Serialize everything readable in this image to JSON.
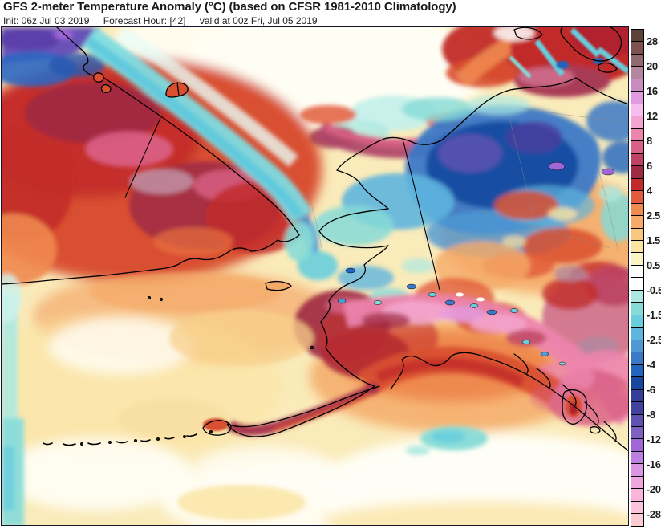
{
  "header": {
    "title": "GFS 2-meter Temperature Anomaly (°C) (based on CFSR 1981-2010 Climatology)",
    "init": "Init: 06z Jul 03 2019",
    "forecast_hour": "Forecast Hour: [42]",
    "valid": "valid at 00z Fri, Jul 05 2019"
  },
  "colorbar": {
    "unit": "°C",
    "labels": [
      "28",
      "20",
      "16",
      "12",
      "8",
      "6",
      "4",
      "2.5",
      "1.5",
      "0.5",
      "-0.5",
      "-1.5",
      "-2.5",
      "-4",
      "-6",
      "-8",
      "-12",
      "-16",
      "-20",
      "-28"
    ],
    "segments": [
      {
        "range": "> 28",
        "color": "#5E4237"
      },
      {
        "range": "24 to 28",
        "color": "#7D5150"
      },
      {
        "range": "20 to 24",
        "color": "#906A6E"
      },
      {
        "range": "18 to 20",
        "color": "#B2879F"
      },
      {
        "range": "16 to 18",
        "color": "#C98CC0"
      },
      {
        "range": "14 to 16",
        "color": "#E29ADF"
      },
      {
        "range": "12 to 14",
        "color": "#F6BDF0"
      },
      {
        "range": "10 to 12",
        "color": "#F3A3CF"
      },
      {
        "range": "8 to 10",
        "color": "#EC84AD"
      },
      {
        "range": "7 to 8",
        "color": "#DA6186"
      },
      {
        "range": "6 to 7",
        "color": "#BD4263"
      },
      {
        "range": "5 to 6",
        "color": "#9E2A44"
      },
      {
        "range": "4 to 5",
        "color": "#C22B29"
      },
      {
        "range": "3 to 4",
        "color": "#E25C3B"
      },
      {
        "range": "2.5 to 3",
        "color": "#EF8A50"
      },
      {
        "range": "2 to 2.5",
        "color": "#F5AA68"
      },
      {
        "range": "1.5 to 2",
        "color": "#F8C87E"
      },
      {
        "range": "1 to 1.5",
        "color": "#FBE3A0"
      },
      {
        "range": "0.5 to 1",
        "color": "#FDF4C6"
      },
      {
        "range": "0 to 0.5",
        "color": "#FFFFFA"
      },
      {
        "range": "-0.5 to 0",
        "color": "#FFFFFF"
      },
      {
        "range": "-1 to -0.5",
        "color": "#ADE9E1"
      },
      {
        "range": "-1.5 to -1",
        "color": "#86DBD7"
      },
      {
        "range": "-2 to -1.5",
        "color": "#68CEDD"
      },
      {
        "range": "-2.5 to -2",
        "color": "#5EB5DE"
      },
      {
        "range": "-3 to -2.5",
        "color": "#4E98D4"
      },
      {
        "range": "-4 to -3",
        "color": "#3B78C6"
      },
      {
        "range": "-5 to -4",
        "color": "#2264BE"
      },
      {
        "range": "-6 to -5",
        "color": "#15489E"
      },
      {
        "range": "-7 to -6",
        "color": "#333F9B"
      },
      {
        "range": "-8 to -7",
        "color": "#42419F"
      },
      {
        "range": "-10 to -8",
        "color": "#5D52B2"
      },
      {
        "range": "-12 to -10",
        "color": "#7D60C2"
      },
      {
        "range": "-14 to -12",
        "color": "#A066D8"
      },
      {
        "range": "-16 to -14",
        "color": "#BD80E0"
      },
      {
        "range": "-18 to -16",
        "color": "#DA96E2"
      },
      {
        "range": "-20 to -18",
        "color": "#EDA6DE"
      },
      {
        "range": "-24 to -20",
        "color": "#FAB5DC"
      },
      {
        "range": "-28 to -24",
        "color": "#FCC3DD"
      },
      {
        "range": "< -28",
        "color": "#FBCCD1"
      }
    ]
  },
  "chart_data": {
    "type": "heatmap",
    "subtype": "filled-contour weather map",
    "title": "GFS 2-meter Temperature Anomaly (°C) (based on CFSR 1981-2010 Climatology)",
    "model": "GFS",
    "variable": "2-meter temperature anomaly",
    "units": "°C",
    "climatology": "CFSR 1981-2010",
    "init": "06z Jul 03 2019",
    "forecast_hour": 42,
    "valid": "00z Fri, Jul 05 2019",
    "region": "Alaska, Chukotka, Bering Sea, Beaufort Sea, Gulf of Alaska",
    "colorbar_tick_labels": [
      28,
      20,
      16,
      12,
      8,
      6,
      4,
      2.5,
      1.5,
      0.5,
      -0.5,
      -1.5,
      -2.5,
      -4,
      -6,
      -8,
      -12,
      -16,
      -20,
      -28
    ],
    "legend_position": "right",
    "notable_anomalies": [
      {
        "area": "Chukotka (Russia, upper left)",
        "anomaly_c": "+5 to +10",
        "appearance": "dark red / maroon mass"
      },
      {
        "area": "North Slope coastal band of Alaska",
        "anomaly_c": "+6 to +10",
        "appearance": "maroon/rose band along Arctic coast"
      },
      {
        "area": "South-central Alaska mountains and panhandle",
        "anomaly_c": "+8 to +14",
        "appearance": "pink/magenta with small cold glacier specks"
      },
      {
        "area": "Southwest Alaska / Bristol Bay / Alaska Peninsula",
        "anomaly_c": "+5 to +8",
        "appearance": "maroon"
      },
      {
        "area": "Beaufort Sea and northeast Alaska interior",
        "anomaly_c": "-4 to -12",
        "appearance": "large dark blue/purple pool"
      },
      {
        "area": "East Siberian Sea (top left corner)",
        "anomaly_c": "-8 to -12",
        "appearance": "purple/dark blue"
      },
      {
        "area": "Central interior Alaska (Yukon valley)",
        "anomaly_c": "-1 to -4",
        "appearance": "cyan/blue patches"
      },
      {
        "area": "Bering Sea and Gulf of Alaska open water",
        "anomaly_c": "0 to +2",
        "appearance": "cream/pale yellow, near normal"
      },
      {
        "area": "Gulf of Alaska coastal water",
        "anomaly_c": "+3 to +5",
        "appearance": "red-orange arc"
      }
    ]
  }
}
